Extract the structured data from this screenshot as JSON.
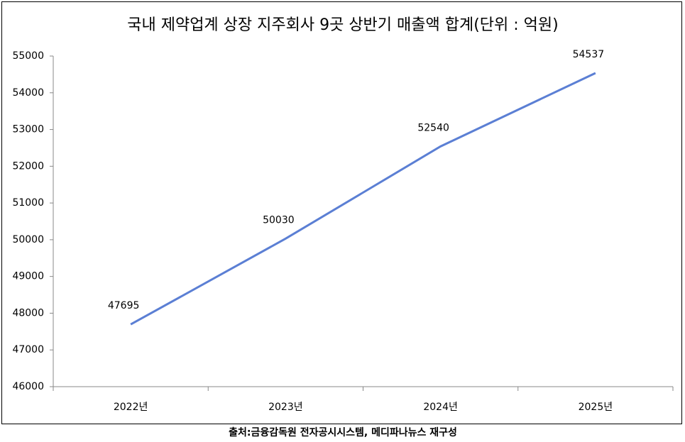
{
  "chart_data": {
    "type": "line",
    "title": "국내 제약업계 상장 지주회사 9곳 상반기 매출액 합계(단위 : 억원)",
    "categories": [
      "2022년",
      "2023년",
      "2024년",
      "2025년"
    ],
    "series": [
      {
        "name": "매출액 합계",
        "color": "#5b7fd4",
        "values": [
          47695,
          50030,
          52540,
          54537
        ]
      }
    ],
    "ylim": [
      46000,
      55000
    ],
    "yticks": [
      46000,
      47000,
      48000,
      49000,
      50000,
      51000,
      52000,
      53000,
      54000,
      55000
    ],
    "grid": false,
    "legend": false,
    "source": "출처:금융감독원 전자공시시스템, 메디파나뉴스 재구성"
  }
}
